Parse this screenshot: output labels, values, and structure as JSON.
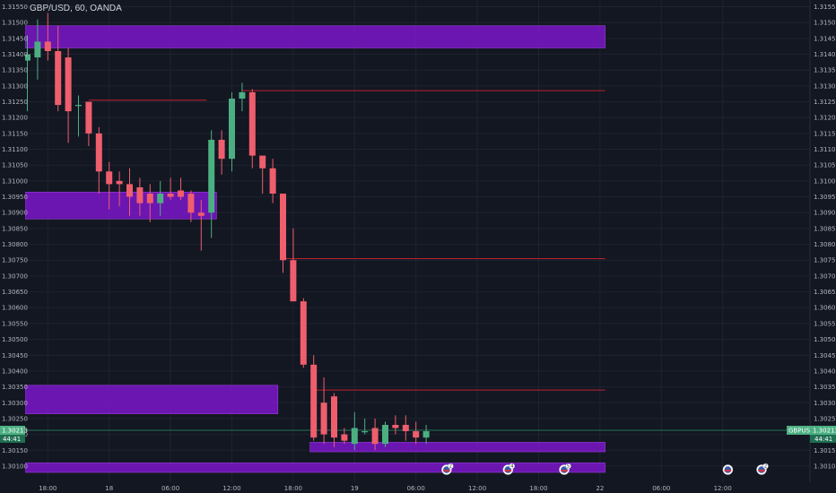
{
  "header": {
    "symbol_title": "GBP/USD, 60, OANDA"
  },
  "colors": {
    "background": "#131722",
    "grid": "#1f2330",
    "up": "#4caf82",
    "down": "#ef5e6d",
    "zone": "#7b16c9",
    "zone_border": "#9b3de0",
    "level": "#c0202e",
    "price_line": "#2e8f6a",
    "text": "#b2b5be"
  },
  "chart_data": {
    "type": "candlestick",
    "symbol": "GBP/USD",
    "timeframe": "60",
    "source": "OANDA",
    "y_range": [
      1.3008,
      1.3156
    ],
    "y_ticks": [
      "1.31550",
      "1.31500",
      "1.31450",
      "1.31400",
      "1.31350",
      "1.31300",
      "1.31250",
      "1.31200",
      "1.31150",
      "1.31100",
      "1.31050",
      "1.31000",
      "1.30950",
      "1.30900",
      "1.30850",
      "1.30800",
      "1.30750",
      "1.30700",
      "1.30650",
      "1.30600",
      "1.30550",
      "1.30500",
      "1.30450",
      "1.30400",
      "1.30350",
      "1.30300",
      "1.30250",
      "1.30200",
      "1.30150",
      "1.30100"
    ],
    "x_labels": [
      {
        "label": "18:00",
        "i": 2
      },
      {
        "label": "18",
        "i": 8
      },
      {
        "label": "06:00",
        "i": 14
      },
      {
        "label": "12:00",
        "i": 20
      },
      {
        "label": "18:00",
        "i": 26
      },
      {
        "label": "19",
        "i": 32
      },
      {
        "label": "06:00",
        "i": 38
      },
      {
        "label": "12:00",
        "i": 44
      },
      {
        "label": "18:00",
        "i": 50
      },
      {
        "label": "22",
        "i": 56
      },
      {
        "label": "06:00",
        "i": 62
      },
      {
        "label": "12:00",
        "i": 68
      }
    ],
    "candles": [
      {
        "o": 1.3138,
        "h": 1.3146,
        "l": 1.3122,
        "c": 1.314
      },
      {
        "o": 1.3139,
        "h": 1.3151,
        "l": 1.3132,
        "c": 1.3144
      },
      {
        "o": 1.3144,
        "h": 1.3153,
        "l": 1.3138,
        "c": 1.3141
      },
      {
        "o": 1.3141,
        "h": 1.3149,
        "l": 1.3122,
        "c": 1.3124
      },
      {
        "o": 1.3139,
        "h": 1.3142,
        "l": 1.3112,
        "c": 1.3122
      },
      {
        "o": 1.3124,
        "h": 1.3127,
        "l": 1.3114,
        "c": 1.3124
      },
      {
        "o": 1.3125,
        "h": 1.3125,
        "l": 1.3111,
        "c": 1.3115
      },
      {
        "o": 1.3115,
        "h": 1.3117,
        "l": 1.3096,
        "c": 1.3103
      },
      {
        "o": 1.3103,
        "h": 1.3106,
        "l": 1.3091,
        "c": 1.3099
      },
      {
        "o": 1.31,
        "h": 1.3103,
        "l": 1.3092,
        "c": 1.3099
      },
      {
        "o": 1.3099,
        "h": 1.3104,
        "l": 1.3089,
        "c": 1.3095
      },
      {
        "o": 1.3098,
        "h": 1.3101,
        "l": 1.3089,
        "c": 1.3093
      },
      {
        "o": 1.3096,
        "h": 1.3099,
        "l": 1.3087,
        "c": 1.3093
      },
      {
        "o": 1.3093,
        "h": 1.31,
        "l": 1.3089,
        "c": 1.3096
      },
      {
        "o": 1.3096,
        "h": 1.3101,
        "l": 1.3094,
        "c": 1.3095
      },
      {
        "o": 1.3097,
        "h": 1.3101,
        "l": 1.3094,
        "c": 1.3095
      },
      {
        "o": 1.3096,
        "h": 1.3097,
        "l": 1.3087,
        "c": 1.309
      },
      {
        "o": 1.309,
        "h": 1.3094,
        "l": 1.3078,
        "c": 1.3089
      },
      {
        "o": 1.309,
        "h": 1.3116,
        "l": 1.3082,
        "c": 1.3113
      },
      {
        "o": 1.3113,
        "h": 1.3116,
        "l": 1.3102,
        "c": 1.3107
      },
      {
        "o": 1.3107,
        "h": 1.3128,
        "l": 1.3103,
        "c": 1.3126
      },
      {
        "o": 1.3126,
        "h": 1.3131,
        "l": 1.3122,
        "c": 1.3128
      },
      {
        "o": 1.3128,
        "h": 1.3129,
        "l": 1.3104,
        "c": 1.3108
      },
      {
        "o": 1.3108,
        "h": 1.3108,
        "l": 1.3096,
        "c": 1.3104
      },
      {
        "o": 1.3104,
        "h": 1.3107,
        "l": 1.3093,
        "c": 1.3096
      },
      {
        "o": 1.3096,
        "h": 1.3096,
        "l": 1.3071,
        "c": 1.3075
      },
      {
        "o": 1.3075,
        "h": 1.3085,
        "l": 1.3062,
        "c": 1.3062
      },
      {
        "o": 1.3062,
        "h": 1.3063,
        "l": 1.3041,
        "c": 1.3042
      },
      {
        "o": 1.3042,
        "h": 1.3045,
        "l": 1.3018,
        "c": 1.3019
      },
      {
        "o": 1.303,
        "h": 1.3038,
        "l": 1.3017,
        "c": 1.302
      },
      {
        "o": 1.3032,
        "h": 1.3033,
        "l": 1.3016,
        "c": 1.3019
      },
      {
        "o": 1.302,
        "h": 1.3022,
        "l": 1.3017,
        "c": 1.3018
      },
      {
        "o": 1.3017,
        "h": 1.3027,
        "l": 1.3015,
        "c": 1.3022
      },
      {
        "o": 1.3021,
        "h": 1.3025,
        "l": 1.302,
        "c": 1.3021
      },
      {
        "o": 1.3022,
        "h": 1.3025,
        "l": 1.3015,
        "c": 1.3017
      },
      {
        "o": 1.3017,
        "h": 1.3024,
        "l": 1.3016,
        "c": 1.3023
      },
      {
        "o": 1.3023,
        "h": 1.3026,
        "l": 1.302,
        "c": 1.3022
      },
      {
        "o": 1.3023,
        "h": 1.3026,
        "l": 1.3018,
        "c": 1.3021
      },
      {
        "o": 1.3021,
        "h": 1.3024,
        "l": 1.3017,
        "c": 1.3019
      },
      {
        "o": 1.3019,
        "h": 1.3023,
        "l": 1.3017,
        "c": 1.3021
      }
    ],
    "zones": [
      {
        "from_i": 0,
        "to_i": 56.5,
        "top": 1.3149,
        "bottom": 1.3142
      },
      {
        "from_i": 0,
        "to_i": 18.5,
        "top": 1.30965,
        "bottom": 1.3088
      },
      {
        "from_i": 0,
        "to_i": 24.5,
        "top": 1.30355,
        "bottom": 1.30265
      },
      {
        "from_i": 28,
        "to_i": 56.5,
        "top": 1.30175,
        "bottom": 1.30145
      },
      {
        "from_i": 0,
        "to_i": 56.5,
        "top": 1.3011,
        "bottom": 1.3008
      }
    ],
    "levels": [
      {
        "from_i": 6,
        "to_i": 17.5,
        "price": 1.31255
      },
      {
        "from_i": 21,
        "to_i": 56.5,
        "price": 1.31285
      },
      {
        "from_i": 25,
        "to_i": 56.5,
        "price": 1.30755
      },
      {
        "from_i": 28,
        "to_i": 56.5,
        "price": 1.3034
      }
    ],
    "current_price": 1.30213,
    "current_price_label": "1.30213",
    "countdown": "44:41",
    "symbol_tag": "GBPUSD",
    "events": [
      {
        "i": 41,
        "count": "2"
      },
      {
        "i": 47,
        "count": "4"
      },
      {
        "i": 52.5,
        "count": "5"
      },
      {
        "i": 68.5,
        "count": ""
      },
      {
        "i": 71.8,
        "count": "2"
      }
    ]
  }
}
